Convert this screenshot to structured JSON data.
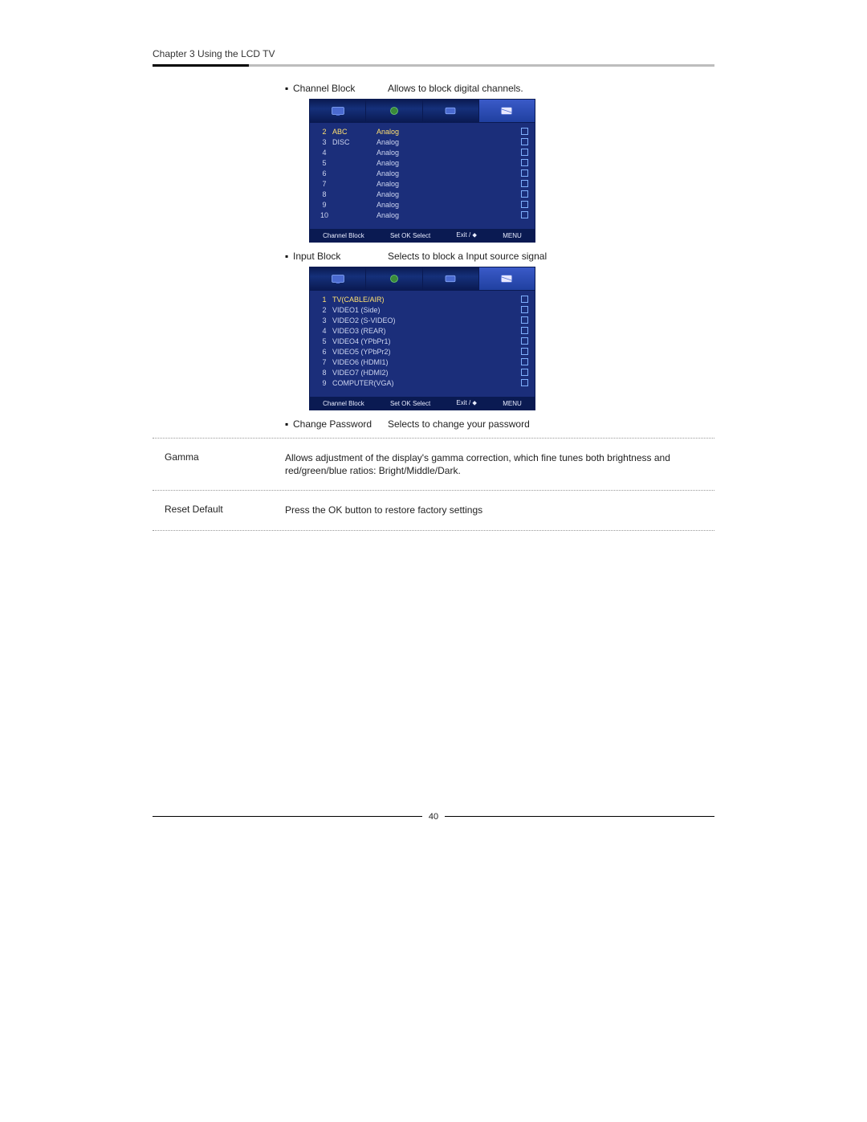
{
  "header": {
    "chapter": "Chapter 3 Using the LCD TV"
  },
  "bullets": {
    "channel_block": {
      "label": "Channel Block",
      "desc": "Allows to block digital channels."
    },
    "input_block": {
      "label": "Input Block",
      "desc": "Selects to block a Input source signal"
    },
    "change_pwd": {
      "label": "Change Password",
      "desc": "Selects to change your password"
    }
  },
  "osd_channel": {
    "rows": [
      {
        "n": "2",
        "name": "ABC",
        "type": "Analog"
      },
      {
        "n": "3",
        "name": "DISC",
        "type": "Analog"
      },
      {
        "n": "4",
        "name": "",
        "type": "Analog"
      },
      {
        "n": "5",
        "name": "",
        "type": "Analog"
      },
      {
        "n": "6",
        "name": "",
        "type": "Analog"
      },
      {
        "n": "7",
        "name": "",
        "type": "Analog"
      },
      {
        "n": "8",
        "name": "",
        "type": "Analog"
      },
      {
        "n": "9",
        "name": "",
        "type": "Analog"
      },
      {
        "n": "10",
        "name": "",
        "type": "Analog"
      }
    ],
    "footer": [
      "Channel Block",
      "Set OK Select",
      "Exit / ⬥",
      "MENU"
    ]
  },
  "osd_input": {
    "rows": [
      {
        "n": "1",
        "name": "TV(CABLE/AIR)"
      },
      {
        "n": "2",
        "name": "VIDEO1 (Side)"
      },
      {
        "n": "3",
        "name": "VIDEO2 (S-VIDEO)"
      },
      {
        "n": "4",
        "name": "VIDEO3 (REAR)"
      },
      {
        "n": "5",
        "name": "VIDEO4 (YPbPr1)"
      },
      {
        "n": "6",
        "name": "VIDEO5 (YPbPr2)"
      },
      {
        "n": "7",
        "name": "VIDEO6 (HDMI1)"
      },
      {
        "n": "8",
        "name": "VIDEO7 (HDMI2)"
      },
      {
        "n": "9",
        "name": "COMPUTER(VGA)"
      }
    ],
    "footer": [
      "Channel Block",
      "Set OK Select",
      "Exit / ⬥",
      "MENU"
    ]
  },
  "gamma": {
    "label": "Gamma",
    "desc": "Allows adjustment of the display's gamma correction, which fine tunes both brightness and red/green/blue ratios: Bright/Middle/Dark."
  },
  "reset": {
    "label": "Reset Default",
    "desc_pre": "Press the ",
    "desc_btn": "OK",
    "desc_post": " button to restore factory settings"
  },
  "page_number": "40",
  "colors": {
    "osd_bg": "#1b2e7a",
    "osd_dark": "#0a1a52",
    "osd_text": "#cdd5f0",
    "osd_hl": "#ffe070"
  }
}
